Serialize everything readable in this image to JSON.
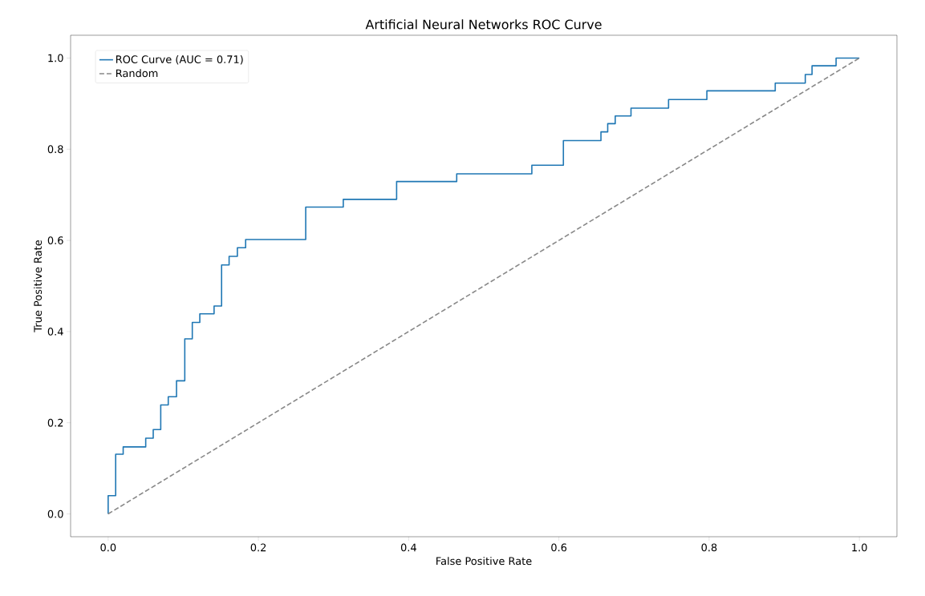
{
  "chart_data": {
    "type": "line",
    "title": "Artificial Neural Networks ROC Curve",
    "xlabel": "False Positive Rate",
    "ylabel": "True Positive Rate",
    "xlim": [
      -0.05,
      1.05
    ],
    "ylim": [
      -0.05,
      1.05
    ],
    "xticks": [
      {
        "value": 0,
        "label": "0.0"
      },
      {
        "value": 0.2,
        "label": "0.2"
      },
      {
        "value": 0.4,
        "label": "0.4"
      },
      {
        "value": 0.6,
        "label": "0.6"
      },
      {
        "value": 0.8,
        "label": "0.8"
      },
      {
        "value": 1,
        "label": "1.0"
      }
    ],
    "yticks": [
      {
        "value": 0,
        "label": "0.0"
      },
      {
        "value": 0.2,
        "label": "0.2"
      },
      {
        "value": 0.4,
        "label": "0.4"
      },
      {
        "value": 0.6,
        "label": "0.6"
      },
      {
        "value": 0.8,
        "label": "0.8"
      },
      {
        "value": 1,
        "label": "1.0"
      }
    ],
    "grid": false,
    "legend": "top left",
    "series": [
      {
        "name": "ROC Curve (AUC = 0.71)",
        "color": "#1f77b4",
        "line_style": "solid",
        "x": [
          0,
          0,
          0.01,
          0.01,
          0.02,
          0.02,
          0.05,
          0.05,
          0.06,
          0.06,
          0.07,
          0.07,
          0.08,
          0.08,
          0.091,
          0.091,
          0.102,
          0.102,
          0.112,
          0.112,
          0.122,
          0.122,
          0.141,
          0.141,
          0.151,
          0.151,
          0.161,
          0.161,
          0.172,
          0.172,
          0.183,
          0.183,
          0.263,
          0.263,
          0.313,
          0.313,
          0.384,
          0.384,
          0.464,
          0.464,
          0.564,
          0.564,
          0.606,
          0.606,
          0.656,
          0.656,
          0.665,
          0.665,
          0.675,
          0.675,
          0.696,
          0.696,
          0.746,
          0.746,
          0.797,
          0.797,
          0.888,
          0.888,
          0.928,
          0.928,
          0.937,
          0.937,
          0.969,
          0.969,
          1.0
        ],
        "values": [
          0,
          0.04,
          0.04,
          0.131,
          0.131,
          0.147,
          0.147,
          0.166,
          0.166,
          0.185,
          0.185,
          0.239,
          0.239,
          0.257,
          0.257,
          0.292,
          0.292,
          0.384,
          0.384,
          0.42,
          0.42,
          0.439,
          0.439,
          0.456,
          0.456,
          0.546,
          0.546,
          0.565,
          0.565,
          0.584,
          0.584,
          0.602,
          0.602,
          0.673,
          0.673,
          0.69,
          0.69,
          0.729,
          0.729,
          0.746,
          0.746,
          0.765,
          0.765,
          0.819,
          0.819,
          0.838,
          0.838,
          0.856,
          0.856,
          0.873,
          0.873,
          0.89,
          0.89,
          0.909,
          0.909,
          0.928,
          0.928,
          0.945,
          0.945,
          0.964,
          0.964,
          0.983,
          0.983,
          1.0,
          1.0
        ]
      },
      {
        "name": "Random",
        "color": "#888888",
        "line_style": "dashed",
        "x": [
          0,
          1
        ],
        "values": [
          0,
          1
        ]
      }
    ]
  }
}
